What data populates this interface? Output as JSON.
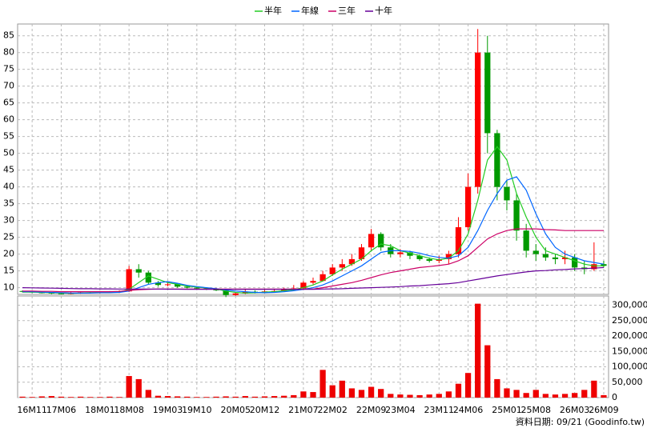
{
  "chart_data": {
    "type": "candlestick",
    "categories": [
      null,
      "16M11",
      null,
      null,
      "17M06",
      null,
      null,
      null,
      "18M01",
      null,
      null,
      "18M08",
      null,
      null,
      null,
      "19M03",
      null,
      null,
      "19M10",
      null,
      null,
      null,
      "20M05",
      null,
      null,
      "20M12",
      null,
      null,
      null,
      "21M07",
      null,
      null,
      "22M02",
      null,
      null,
      null,
      "22M09",
      null,
      null,
      "23M04",
      null,
      null,
      null,
      "23M11",
      null,
      null,
      "24M06",
      null,
      null,
      null,
      "25M01",
      null,
      null,
      "25M08",
      null,
      null,
      null,
      "26M03",
      null,
      null,
      "26M09"
    ],
    "open": [
      9.0,
      8.8,
      8.6,
      8.5,
      8.3,
      8.2,
      8.4,
      8.6,
      8.5,
      8.7,
      8.6,
      8.9,
      15.5,
      14.5,
      11.5,
      10.8,
      11,
      10.3,
      10,
      9.8,
      9.6,
      9.2,
      7.8,
      8.3,
      8.8,
      8.6,
      8.9,
      9,
      9.6,
      9.8,
      11.5,
      12,
      14,
      16,
      17,
      18.5,
      22,
      26,
      22,
      20,
      20.5,
      19.5,
      18.5,
      18,
      18.5,
      20,
      28,
      40,
      80,
      56,
      40,
      36,
      27,
      21,
      20,
      19,
      18.5,
      19,
      16,
      15.5,
      17
    ],
    "high": [
      9.2,
      9,
      8.9,
      8.7,
      8.6,
      8.7,
      8.9,
      8.9,
      9,
      9,
      9.2,
      16.5,
      17,
      15,
      12,
      11.8,
      11.4,
      10.8,
      10.3,
      10.1,
      9.9,
      9.4,
      8.6,
      9.6,
      9.2,
      9.3,
      9.5,
      10,
      10.8,
      12,
      13,
      15,
      17,
      18.5,
      20,
      23,
      27.5,
      26.5,
      23,
      21.5,
      21,
      20,
      19,
      19.5,
      21,
      31,
      44,
      87,
      85,
      57,
      42,
      38,
      29,
      23,
      22,
      20,
      21,
      20,
      18,
      23.5,
      18
    ],
    "low": [
      8.6,
      8.4,
      8.3,
      8.1,
      8.0,
      8.0,
      8.2,
      8.3,
      8.3,
      8.4,
      8.4,
      8.7,
      13,
      11,
      10.3,
      10.4,
      10,
      9.8,
      9.5,
      9.3,
      9,
      7.2,
      7.6,
      8.1,
      8.3,
      8.4,
      8.6,
      8.8,
      9.2,
      9.6,
      11,
      11.8,
      13.5,
      15,
      16.5,
      18,
      21,
      21,
      19,
      19,
      18.5,
      18,
      17.5,
      17.3,
      17,
      19,
      27,
      38,
      50,
      36,
      33,
      24,
      19,
      18,
      18,
      17,
      17,
      15,
      14,
      15,
      16
    ],
    "close": [
      8.8,
      8.6,
      8.5,
      8.3,
      8.2,
      8.4,
      8.6,
      8.5,
      8.7,
      8.6,
      8.9,
      15.5,
      14.5,
      11.5,
      10.8,
      11,
      10.3,
      10,
      9.8,
      9.6,
      9.2,
      7.8,
      8.3,
      8.8,
      8.6,
      8.9,
      9,
      9.6,
      9.8,
      11.5,
      12,
      14,
      16,
      17,
      18.5,
      22,
      26,
      22,
      20,
      20.5,
      19.5,
      18.5,
      18,
      18.5,
      20,
      28,
      40,
      80,
      56,
      40,
      36,
      27,
      21,
      20,
      19,
      18.5,
      19,
      16,
      15.5,
      17,
      16.5
    ],
    "up_color": "#ff0000",
    "down_color": "#009900",
    "ylim": [
      8,
      88.5
    ],
    "yticks": [
      10,
      15,
      20,
      25,
      30,
      35,
      40,
      45,
      50,
      55,
      60,
      65,
      70,
      75,
      80,
      85
    ],
    "grid": true,
    "series": [
      {
        "name": "半年",
        "color": "#22cc22",
        "values": [
          8.7,
          8.7,
          8.6,
          8.5,
          8.4,
          8.3,
          8.4,
          8.5,
          8.6,
          8.6,
          8.7,
          9.5,
          11.5,
          13.5,
          12.5,
          11.5,
          11,
          10.5,
          10.2,
          9.9,
          9.6,
          9,
          8.6,
          8.4,
          8.5,
          8.7,
          8.8,
          9.1,
          9.4,
          10,
          10.8,
          12,
          13.8,
          15.5,
          17,
          18.5,
          21,
          23,
          22.5,
          21,
          20.3,
          19.5,
          18.8,
          18.3,
          18.8,
          21,
          26,
          36,
          48,
          52,
          48,
          38,
          31,
          25,
          21,
          20,
          19,
          18,
          17,
          16.5,
          16.5
        ]
      },
      {
        "name": "年線",
        "color": "#0066ff",
        "values": [
          8.8,
          8.8,
          8.7,
          8.6,
          8.5,
          8.4,
          8.4,
          8.4,
          8.5,
          8.5,
          8.6,
          9,
          10,
          11,
          11.5,
          11.8,
          11.3,
          10.7,
          10.3,
          10,
          9.7,
          9.3,
          9,
          8.8,
          8.6,
          8.5,
          8.6,
          8.8,
          9.1,
          9.5,
          10,
          10.8,
          12,
          13.5,
          15,
          16.5,
          18.5,
          20.5,
          21,
          21,
          20.8,
          20.3,
          19.5,
          19,
          18.8,
          19.5,
          22,
          27,
          33,
          38,
          42,
          43,
          39,
          32,
          26,
          22,
          20,
          19,
          18,
          17.5,
          17
        ]
      },
      {
        "name": "三年",
        "color": "#cc0066",
        "values": [
          9,
          9,
          8.9,
          8.9,
          8.8,
          8.8,
          8.8,
          8.8,
          8.8,
          8.8,
          8.9,
          9.2,
          9.4,
          9.5,
          9.6,
          9.6,
          9.6,
          9.6,
          9.6,
          9.6,
          9.6,
          9.6,
          9.6,
          9.6,
          9.6,
          9.6,
          9.6,
          9.6,
          9.6,
          9.6,
          9.6,
          10,
          10.5,
          11,
          11.5,
          12.2,
          13,
          13.8,
          14.5,
          15,
          15.5,
          16,
          16.3,
          16.6,
          17,
          18,
          19.5,
          22,
          24.5,
          26,
          27,
          27.5,
          27.5,
          27.5,
          27.3,
          27.2,
          27,
          27,
          27,
          27,
          27
        ]
      },
      {
        "name": "十年",
        "color": "#660099",
        "values": [
          10,
          9.95,
          9.9,
          9.85,
          9.8,
          9.75,
          9.7,
          9.7,
          9.65,
          9.65,
          9.6,
          9.6,
          9.6,
          9.6,
          9.6,
          9.55,
          9.55,
          9.5,
          9.5,
          9.5,
          9.5,
          9.5,
          9.5,
          9.5,
          9.5,
          9.5,
          9.5,
          9.5,
          9.5,
          9.5,
          9.5,
          9.6,
          9.65,
          9.7,
          9.8,
          9.9,
          10,
          10.1,
          10.2,
          10.3,
          10.5,
          10.6,
          10.8,
          11,
          11.2,
          11.5,
          12,
          12.5,
          13,
          13.5,
          13.9,
          14.3,
          14.7,
          15,
          15.1,
          15.3,
          15.4,
          15.6,
          15.7,
          15.8,
          16
        ]
      }
    ],
    "volume": {
      "type": "bar",
      "color": "#ee0000",
      "values": [
        3000,
        2000,
        4000,
        5000,
        3000,
        2000,
        3000,
        2000,
        2000,
        3000,
        2000,
        70000,
        60000,
        25000,
        6000,
        5000,
        4000,
        3000,
        2000,
        2000,
        3000,
        4000,
        3000,
        5000,
        3000,
        4000,
        5000,
        6000,
        8000,
        20000,
        18000,
        90000,
        40000,
        55000,
        30000,
        25000,
        35000,
        28000,
        12000,
        10000,
        9000,
        8000,
        10000,
        12000,
        20000,
        45000,
        80000,
        305000,
        170000,
        60000,
        30000,
        25000,
        15000,
        25000,
        12000,
        10000,
        12000,
        15000,
        25000,
        55000,
        8000
      ],
      "ylim": [
        0,
        330000
      ],
      "yticks": [
        0,
        {
          "value": 50000,
          "label": "50,000"
        },
        {
          "value": 100000,
          "label": "100,000"
        },
        {
          "value": 150000,
          "label": "150,000"
        },
        {
          "value": 200000,
          "label": "200,000"
        },
        {
          "value": 250000,
          "label": "250,000"
        },
        {
          "value": 300000,
          "label": "300,000"
        }
      ]
    },
    "source": "資料日期: 09/21 (Goodinfo.tw)"
  }
}
